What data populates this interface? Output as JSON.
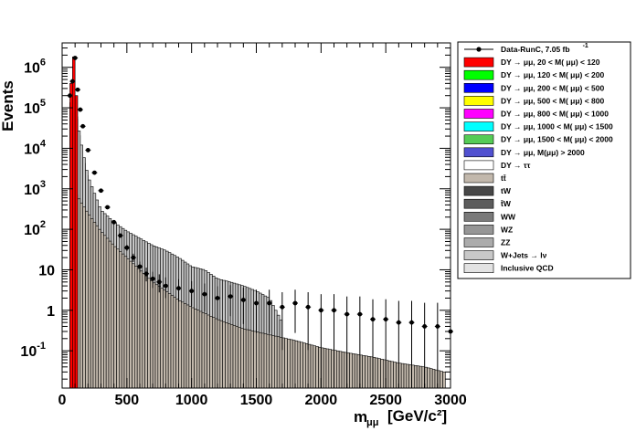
{
  "chart_data": {
    "type": "histogram",
    "y_scale": "log",
    "xlim": [
      0,
      3000
    ],
    "ylim": [
      0.012,
      4000000
    ],
    "bin_width": 20,
    "xlabel_main": "m",
    "xlabel_sub": "μμ",
    "xlabel_unit": "[GeV/c²]",
    "ylabel": "Events",
    "x_ticks": [
      0,
      500,
      1000,
      1500,
      2000,
      2500,
      3000
    ],
    "x_tick_labels": [
      "0",
      "500",
      "1000",
      "1500",
      "2000",
      "2500",
      "3000"
    ],
    "y_ticks": [
      {
        "value": 0.1,
        "base": "10",
        "exp": "-1"
      },
      {
        "value": 1,
        "base": "1",
        "exp": ""
      },
      {
        "value": 10,
        "base": "10",
        "exp": ""
      },
      {
        "value": 100,
        "base": "10",
        "exp": "2"
      },
      {
        "value": 1000,
        "base": "10",
        "exp": "3"
      },
      {
        "value": 10000,
        "base": "10",
        "exp": "4"
      },
      {
        "value": 100000,
        "base": "10",
        "exp": "5"
      },
      {
        "value": 1000000,
        "base": "10",
        "exp": "6"
      }
    ],
    "legend": [
      {
        "label": "Data-RunC, 7.05 fb",
        "sup": "-1",
        "type": "marker",
        "color": "#000000"
      },
      {
        "label": "DY → μμ, 20 < M( μμ) <  120",
        "type": "box",
        "color": "#ff0000"
      },
      {
        "label": "DY → μμ, 120 < M( μμ) <  200",
        "type": "box",
        "color": "#00ff00"
      },
      {
        "label": "DY → μμ, 200 < M( μμ) <  500",
        "type": "box",
        "color": "#0000ff"
      },
      {
        "label": "DY → μμ, 500 < M( μμ) <  800",
        "type": "box",
        "color": "#ffff00"
      },
      {
        "label": "DY → μμ, 800 < M( μμ) < 1000",
        "type": "box",
        "color": "#ff00ff"
      },
      {
        "label": "DY → μμ, 1000 < M( μμ) < 1500",
        "type": "box",
        "color": "#00ffff"
      },
      {
        "label": "DY → μμ, 1500 < M( μμ) < 2000",
        "type": "box",
        "color": "#55cc55"
      },
      {
        "label": "DY → μμ, M(μμ) > 2000",
        "type": "box",
        "color": "#5050d0"
      },
      {
        "label": "DY → ττ",
        "type": "box",
        "color": "#ffffff"
      },
      {
        "label": "tt̄",
        "type": "box",
        "color": "#c2b8ac"
      },
      {
        "label": "tW",
        "type": "box",
        "color": "#474747"
      },
      {
        "label": "t̄W",
        "type": "box",
        "color": "#5c5c5c"
      },
      {
        "label": "WW",
        "type": "box",
        "color": "#7a7a7a"
      },
      {
        "label": "WZ",
        "type": "box",
        "color": "#969696"
      },
      {
        "label": "ZZ",
        "type": "box",
        "color": "#ababab"
      },
      {
        "label": "W+Jets  → lν",
        "type": "box",
        "color": "#c8c8c8"
      },
      {
        "label": "Inclusive QCD",
        "type": "box",
        "color": "#e3e3e3"
      }
    ],
    "series": [
      {
        "name": "Inclusive QCD",
        "color": "#e3e3e3",
        "x": [
          60,
          80,
          100,
          120,
          140,
          160,
          200,
          250,
          300,
          350,
          400,
          450,
          500,
          550,
          600,
          650
        ],
        "y": [
          150000,
          120000,
          80000,
          35000,
          12000,
          6000,
          1500,
          400,
          130,
          40,
          15,
          6,
          3,
          1.5,
          0.5,
          0.01
        ]
      },
      {
        "name": "W+Jets  → lν",
        "color": "#c8c8c8",
        "x": [
          60,
          100,
          150,
          200,
          300,
          400,
          500,
          600,
          700,
          800,
          900,
          1000,
          1100,
          1200,
          1300,
          1400,
          1500,
          1600,
          1700
        ],
        "y": [
          150000,
          90000,
          12000,
          2000,
          300,
          150,
          90,
          60,
          40,
          30,
          20,
          12,
          10,
          6,
          5,
          4,
          3,
          2,
          0.5
        ]
      },
      {
        "name": "tt̄",
        "color": "#c2b8ac",
        "x": [
          100,
          200,
          300,
          400,
          500,
          600,
          700,
          800,
          900,
          1000,
          1200,
          1400,
          1600,
          1800,
          2000,
          2200,
          2400,
          2600,
          2800,
          2950
        ],
        "y": [
          800,
          250,
          90,
          40,
          20,
          10,
          5,
          3,
          1.8,
          1.2,
          0.6,
          0.35,
          0.25,
          0.18,
          0.12,
          0.09,
          0.07,
          0.05,
          0.04,
          0.03
        ]
      },
      {
        "name": "DY → μμ, 20 < M( μμ) <  120",
        "color": "#ff0000",
        "x": [
          60,
          70,
          80,
          90,
          100,
          110,
          120
        ],
        "y": [
          250000,
          400000,
          1500000,
          1800000,
          900000,
          200000,
          50000
        ]
      },
      {
        "name": "Data-RunC, 7.05 fb⁻¹",
        "color": "#000000",
        "x": [
          60,
          80,
          100,
          120,
          140,
          160,
          200,
          250,
          300,
          350,
          400,
          450,
          500,
          550,
          600,
          650,
          700,
          750,
          800,
          900,
          1000,
          1100,
          1200,
          1300,
          1400,
          1500,
          1600,
          1700,
          1800,
          1900,
          2000,
          2100,
          2200,
          2300,
          2400,
          2500,
          2600,
          2700,
          2800,
          2900,
          3000
        ],
        "y": [
          200000,
          450000,
          1700000,
          280000,
          90000,
          35000,
          9000,
          2500,
          900,
          350,
          150,
          70,
          35,
          20,
          12,
          8,
          6,
          5,
          4,
          3.5,
          3,
          2.5,
          2,
          2.2,
          1.8,
          1.5,
          1.5,
          1.2,
          1.5,
          1.2,
          1,
          1,
          0.8,
          0.8,
          0.6,
          0.6,
          0.5,
          0.5,
          0.4,
          0.4,
          0.3
        ]
      }
    ]
  }
}
